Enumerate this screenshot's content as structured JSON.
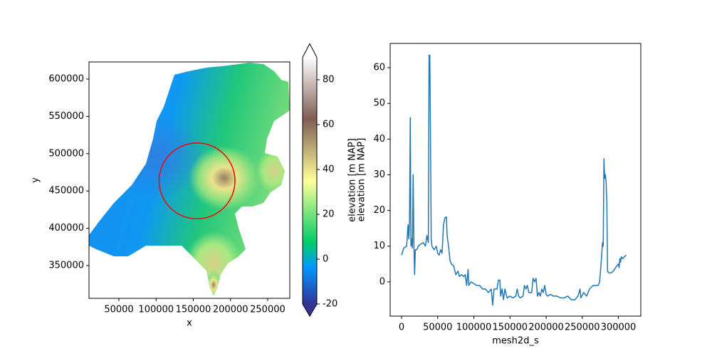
{
  "chart_data": [
    {
      "type": "mesh",
      "xlabel": "x",
      "ylabel": "y",
      "xlim": [
        9800,
        279700
      ],
      "xticks": [
        50000,
        100000,
        150000,
        200000,
        250000
      ],
      "ylim": [
        306100,
        622900
      ],
      "yticks": [
        350000,
        400000,
        450000,
        500000,
        550000,
        600000
      ],
      "circle": {
        "x": 155000,
        "y": 463500,
        "r": 51000,
        "color": "red"
      },
      "colorbar": {
        "label": "elevation [m NAP]",
        "cmap": "terrain",
        "extend": "both",
        "lim": [
          -20,
          90
        ],
        "ticks": [
          -20,
          0,
          20,
          40,
          60,
          80
        ]
      }
    },
    {
      "type": "line",
      "xlabel": "mesh2d_s",
      "ylabel": "elevation [m NAP]",
      "color": "#1f77b4",
      "xlim": [
        -15800,
        331000
      ],
      "xticks": [
        0,
        50000,
        100000,
        150000,
        200000,
        250000,
        300000
      ],
      "ylim": [
        -9.6,
        66.8
      ],
      "yticks": [
        0,
        10,
        20,
        30,
        40,
        50,
        60
      ],
      "x": [
        0,
        3000,
        7000,
        9000,
        10000,
        11000,
        12000,
        13000,
        14000,
        15000,
        16000,
        17000,
        18000,
        19000,
        21000,
        23000,
        26000,
        30000,
        33000,
        35000,
        37000,
        38000,
        39000,
        40000,
        41000,
        42000,
        45000,
        48000,
        50000,
        52000,
        54000,
        56000,
        58000,
        60000,
        62000,
        63000,
        65000,
        67000,
        69000,
        72000,
        75000,
        78000,
        80000,
        83000,
        86000,
        88000,
        90000,
        92000,
        93000,
        96000,
        100000,
        104000,
        108000,
        112000,
        116000,
        120000,
        124000,
        126000,
        128000,
        132000,
        134000,
        136000,
        137000,
        139000,
        141000,
        143000,
        146000,
        150000,
        154000,
        158000,
        160000,
        162000,
        164000,
        168000,
        170000,
        172000,
        174000,
        176000,
        180000,
        182000,
        184000,
        186000,
        188000,
        190000,
        192000,
        194000,
        196000,
        198000,
        200000,
        202000,
        206000,
        210000,
        215000,
        220000,
        225000,
        230000,
        235000,
        240000,
        244000,
        247000,
        248000,
        252000,
        256000,
        260000,
        265000,
        269000,
        272000,
        274000,
        276000,
        278000,
        279000,
        280000,
        281000,
        282000,
        283000,
        284000,
        285000,
        287000,
        290000,
        293000,
        296000,
        298000,
        300000,
        301000,
        302000,
        303000,
        304000,
        306000,
        308000,
        311000
      ],
      "values": [
        7.5,
        9.5,
        10,
        16,
        12,
        17,
        46,
        10,
        12,
        9.5,
        30,
        11,
        2,
        9,
        9,
        10,
        10.5,
        11,
        10,
        13,
        11,
        63.5,
        63.5,
        40,
        12,
        10,
        9,
        10,
        8,
        7.5,
        9,
        8,
        16,
        18,
        18.2,
        13,
        10,
        6,
        5,
        4.5,
        2,
        3,
        1.5,
        2,
        1.5,
        2,
        -1,
        3.5,
        -1,
        0,
        -0.5,
        -1,
        -1,
        -2,
        -2,
        -3,
        -2,
        -6.5,
        -2,
        -2,
        0.5,
        0.5,
        -4,
        -2,
        -5,
        -2,
        -4.5,
        -4,
        -4.5,
        -4,
        -2,
        -4,
        -4.5,
        -4,
        -1,
        -2,
        -1,
        -3,
        -3,
        1,
        0,
        1,
        -4,
        -3,
        -4,
        -2,
        -3,
        -1,
        -3.5,
        -4,
        -3.5,
        -4,
        -4,
        -4.5,
        -4.5,
        -4,
        -5,
        -5,
        -4,
        -2,
        -4.5,
        -3,
        -4,
        -2,
        -1,
        -1,
        -1,
        0,
        5,
        11,
        10,
        34.5,
        29,
        30,
        28,
        22,
        3,
        2.5,
        2.5,
        3,
        4,
        4.5,
        5,
        4,
        6.5,
        5.5,
        7,
        6.5,
        7,
        7.5
      ]
    }
  ]
}
